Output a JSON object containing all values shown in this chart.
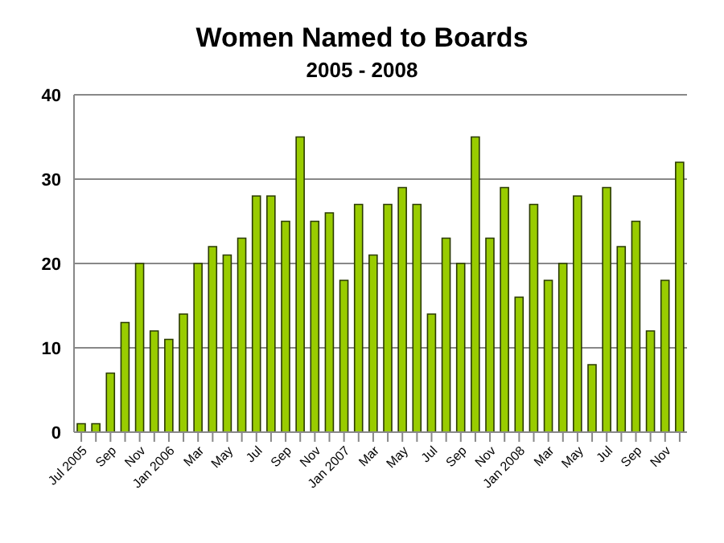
{
  "chart_data": {
    "type": "bar",
    "title": "Women Named to Boards",
    "subtitle": "2005 - 2008",
    "categories": [
      "Jul 2005",
      null,
      "Sep",
      null,
      "Nov",
      null,
      "Jan 2006",
      null,
      "Mar",
      null,
      "May",
      null,
      "Jul",
      null,
      "Sep",
      null,
      "Nov",
      null,
      "Jan 2007",
      null,
      "Mar",
      null,
      "May",
      null,
      "Jul",
      null,
      "Sep",
      null,
      "Nov",
      null,
      "Jan 2008",
      null,
      "Mar",
      null,
      "May",
      null,
      "Jul",
      null,
      "Sep",
      null,
      "Nov",
      null
    ],
    "values": [
      1,
      1,
      7,
      13,
      20,
      12,
      11,
      14,
      20,
      22,
      21,
      23,
      28,
      28,
      25,
      35,
      25,
      26,
      18,
      27,
      21,
      27,
      29,
      27,
      14,
      23,
      20,
      35,
      23,
      29,
      16,
      27,
      18,
      20,
      28,
      8,
      29,
      22,
      25,
      12,
      18,
      32
    ],
    "color": "#99cc00",
    "ylim": [
      0,
      40
    ],
    "yticks": [
      0,
      10,
      20,
      30,
      40
    ],
    "grid": "y"
  }
}
